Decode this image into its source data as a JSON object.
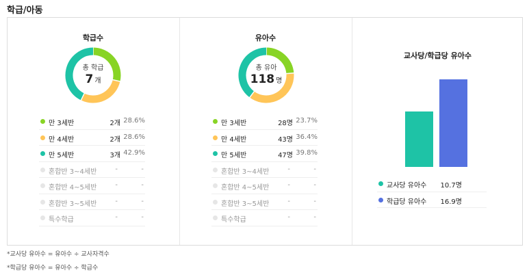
{
  "section_title": "학급/아동",
  "colors": {
    "green": "#88d425",
    "yellow": "#ffc558",
    "teal": "#1ec3a6",
    "gray": "#e6e6e6",
    "blue": "#5571e0"
  },
  "class_panel": {
    "title": "학급수",
    "center_label": "총 학급",
    "center_value": "7",
    "center_unit": "개",
    "rows": [
      {
        "label": "만 3세반",
        "count": "2개",
        "pct": "28.6%",
        "color": "green",
        "value": 2
      },
      {
        "label": "만 4세반",
        "count": "2개",
        "pct": "28.6%",
        "color": "yellow",
        "value": 2
      },
      {
        "label": "만 5세반",
        "count": "3개",
        "pct": "42.9%",
        "color": "teal",
        "value": 3
      },
      {
        "label": "혼합반 3~4세반",
        "count": "-",
        "pct": "-",
        "color": "gray"
      },
      {
        "label": "혼합반 4~5세반",
        "count": "-",
        "pct": "-",
        "color": "gray"
      },
      {
        "label": "혼합반 3~5세반",
        "count": "-",
        "pct": "-",
        "color": "gray"
      },
      {
        "label": "특수학급",
        "count": "-",
        "pct": "-",
        "color": "gray"
      }
    ]
  },
  "child_panel": {
    "title": "유아수",
    "center_label": "총 유아",
    "center_value": "118",
    "center_unit": "명",
    "rows": [
      {
        "label": "만 3세반",
        "count": "28명",
        "pct": "23.7%",
        "color": "green",
        "value": 28
      },
      {
        "label": "만 4세반",
        "count": "43명",
        "pct": "36.4%",
        "color": "yellow",
        "value": 43
      },
      {
        "label": "만 5세반",
        "count": "47명",
        "pct": "39.8%",
        "color": "teal",
        "value": 47
      },
      {
        "label": "혼합반 3~4세반",
        "count": "-",
        "pct": "-",
        "color": "gray"
      },
      {
        "label": "혼합반 4~5세반",
        "count": "-",
        "pct": "-",
        "color": "gray"
      },
      {
        "label": "혼합반 3~5세반",
        "count": "-",
        "pct": "-",
        "color": "gray"
      },
      {
        "label": "특수학급",
        "count": "-",
        "pct": "-",
        "color": "gray"
      }
    ]
  },
  "ratio_panel": {
    "title": "교사당/학급당 유아수",
    "rows": [
      {
        "label": "교사당 유아수",
        "count": "10.7명",
        "color": "teal"
      },
      {
        "label": "학급당 유아수",
        "count": "16.9명",
        "color": "blue"
      }
    ]
  },
  "chart_data": {
    "type": "bar",
    "categories": [
      "교사당 유아수",
      "학급당 유아수"
    ],
    "values": [
      10.7,
      16.9
    ],
    "title": "교사당/학급당 유아수",
    "ylim": [
      0,
      20
    ]
  },
  "footnotes": [
    "*교사당 유아수 = 유아수 ÷ 교사자격수",
    "*학급당 유아수 = 유아수 ÷ 학급수"
  ]
}
